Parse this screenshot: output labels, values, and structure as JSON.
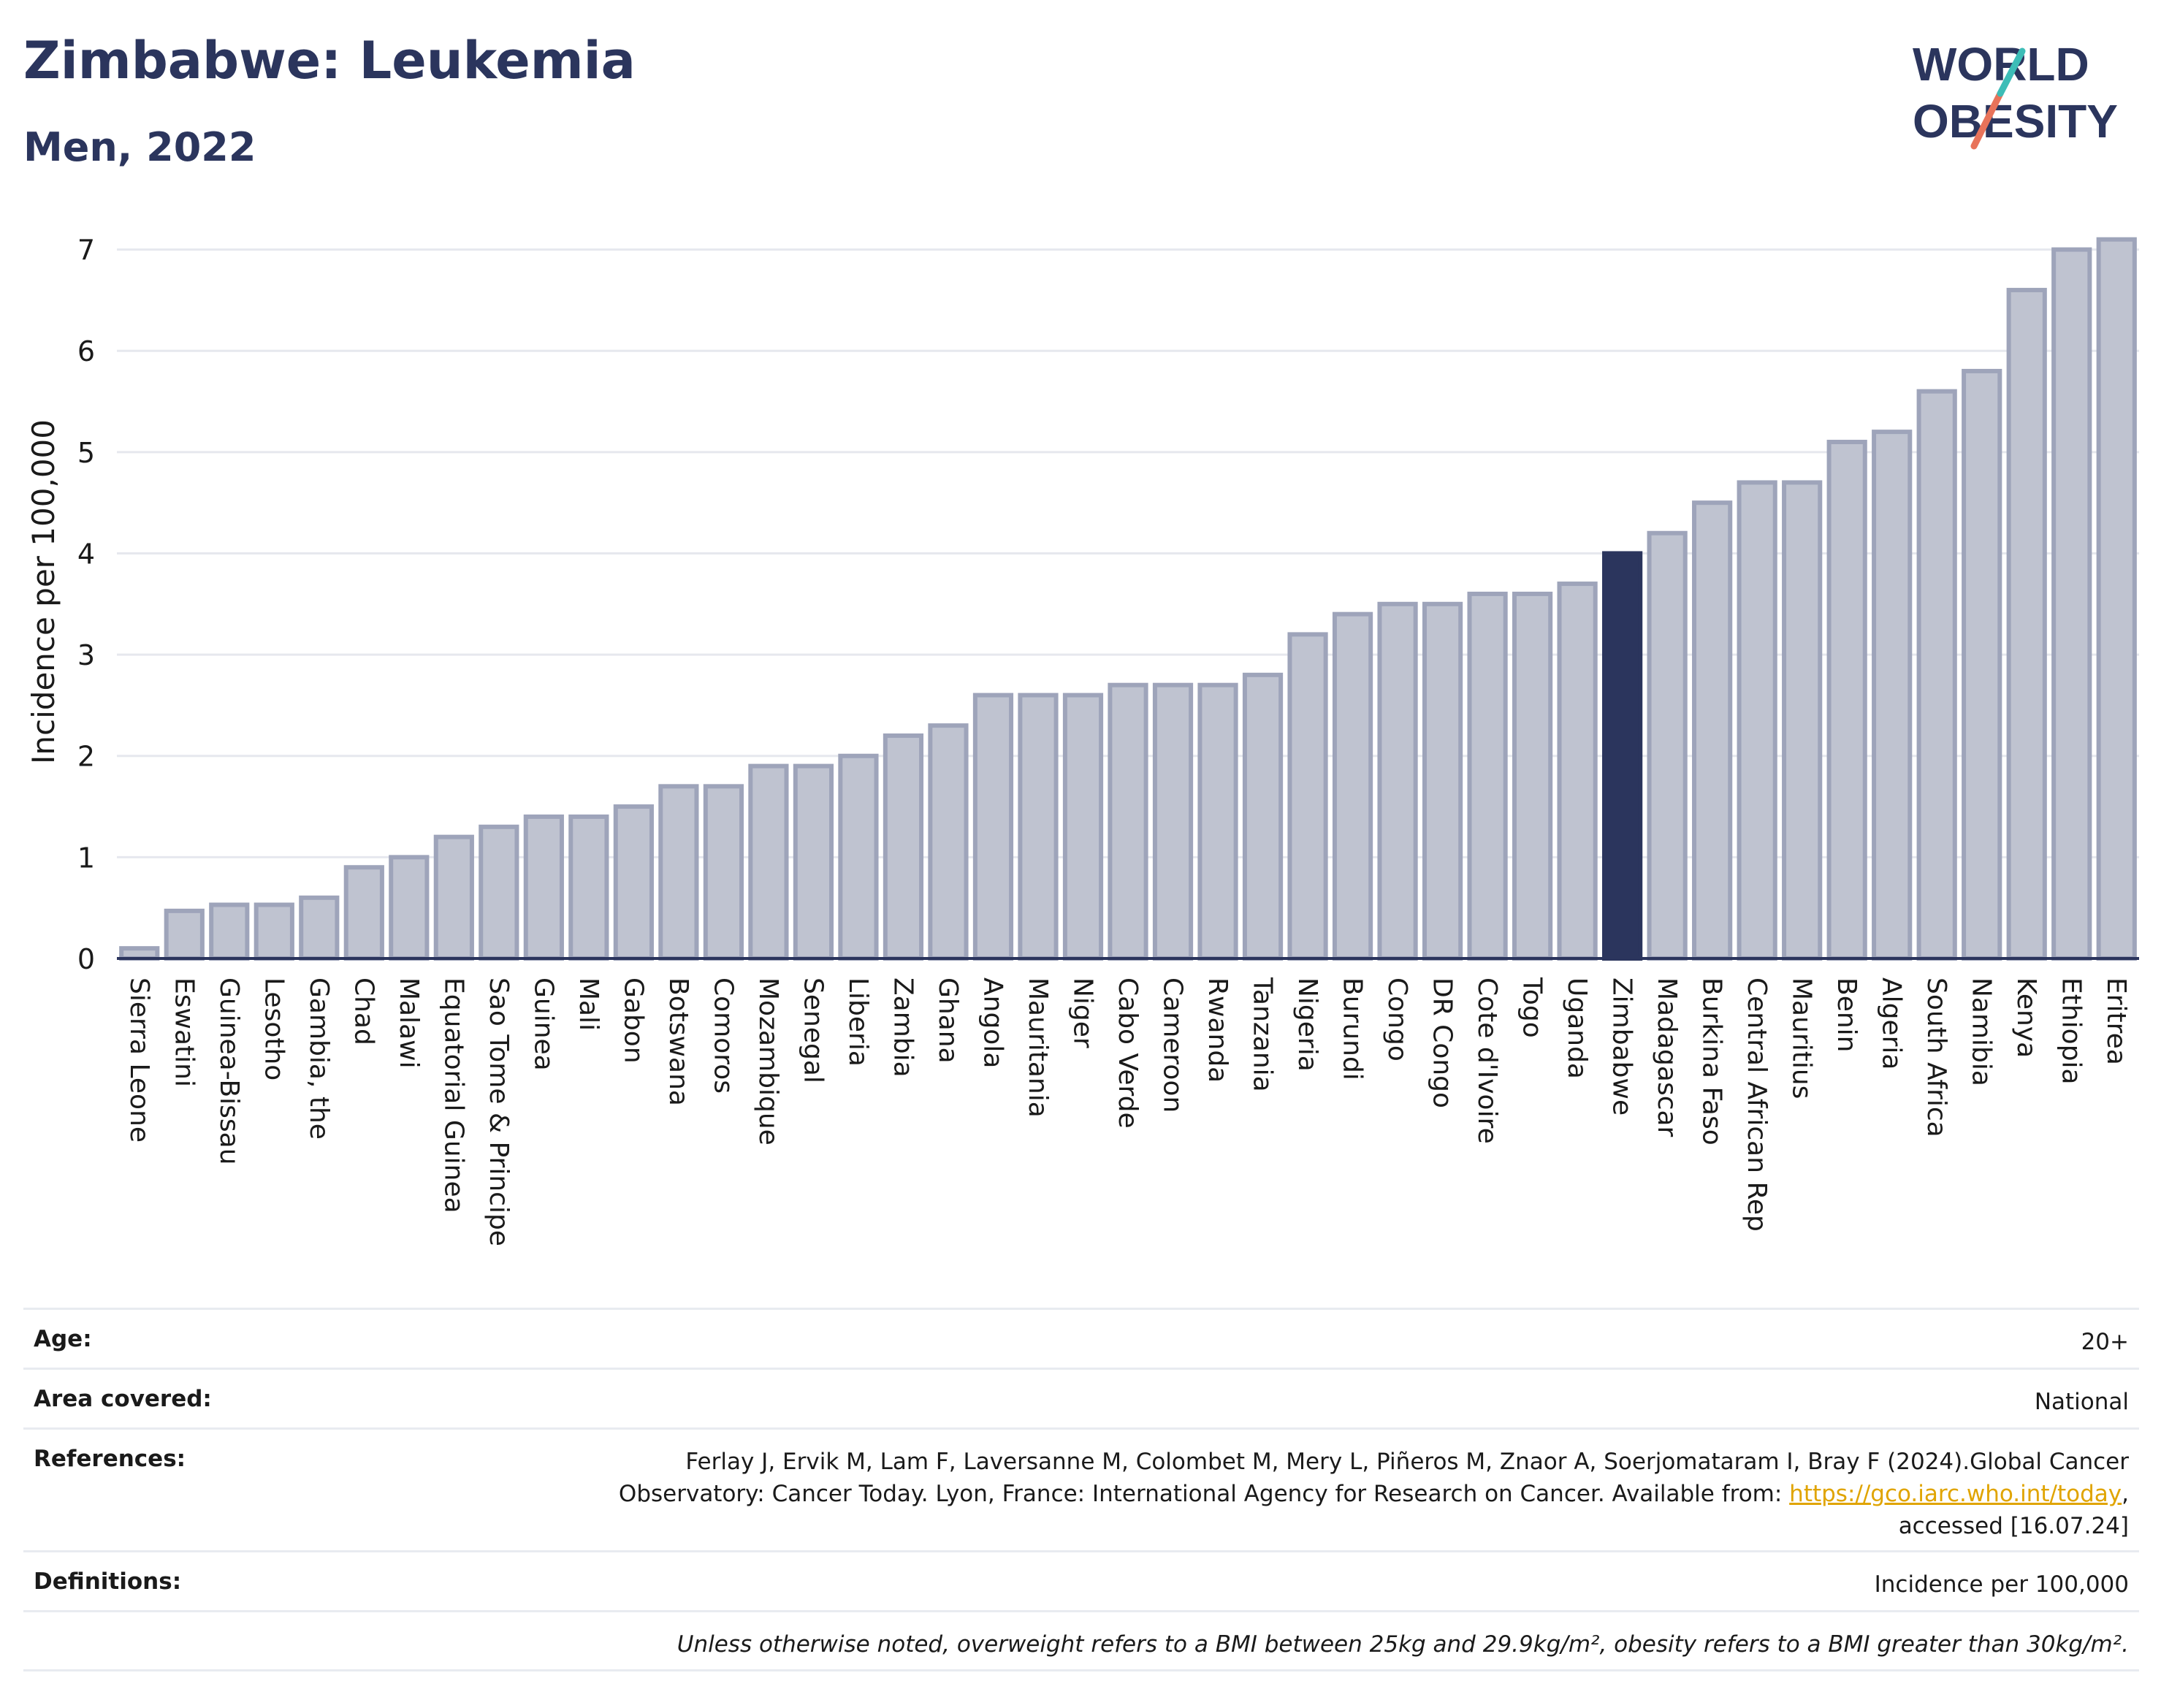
{
  "header": {
    "title": "Zimbabwe: Leukemia",
    "subtitle": "Men, 2022"
  },
  "logo": {
    "line1": "WORLD",
    "line2": "OBESITY",
    "accent_teal": "#3dbdb7",
    "accent_coral": "#e8735a",
    "color": "#2b355d"
  },
  "chart_data": {
    "type": "bar",
    "ylabel": "Incidence per 100,000",
    "ylim": [
      0,
      7.3
    ],
    "yticks": [
      0,
      1,
      2,
      3,
      4,
      5,
      6,
      7
    ],
    "grid": true,
    "highlight": "Zimbabwe",
    "colors": {
      "bar": "#bfc3d0",
      "bar_edge": "#9ea4ba",
      "highlight": "#2b355d",
      "grid": "#e6e8ee",
      "axis": "#2b355d"
    },
    "categories": [
      "Sierra Leone",
      "Eswatini",
      "Guinea-Bissau",
      "Lesotho",
      "Gambia, the",
      "Chad",
      "Malawi",
      "Equatorial Guinea",
      "Sao Tome & Principe",
      "Guinea",
      "Mali",
      "Gabon",
      "Botswana",
      "Comoros",
      "Mozambique",
      "Senegal",
      "Liberia",
      "Zambia",
      "Ghana",
      "Angola",
      "Mauritania",
      "Niger",
      "Cabo Verde",
      "Cameroon",
      "Rwanda",
      "Tanzania",
      "Nigeria",
      "Burundi",
      "Congo",
      "DR Congo",
      "Cote d'Ivoire",
      "Togo",
      "Uganda",
      "Zimbabwe",
      "Madagascar",
      "Burkina Faso",
      "Central African Rep",
      "Mauritius",
      "Benin",
      "Algeria",
      "South Africa",
      "Namibia",
      "Kenya",
      "Ethiopia",
      "Eritrea"
    ],
    "values": [
      0.1,
      0.47,
      0.53,
      0.53,
      0.6,
      0.9,
      1.0,
      1.2,
      1.3,
      1.4,
      1.4,
      1.5,
      1.7,
      1.7,
      1.9,
      1.9,
      2.0,
      2.2,
      2.3,
      2.6,
      2.6,
      2.6,
      2.7,
      2.7,
      2.7,
      2.8,
      3.2,
      3.4,
      3.5,
      3.5,
      3.6,
      3.6,
      3.7,
      4.0,
      4.2,
      4.5,
      4.7,
      4.7,
      5.1,
      5.2,
      5.6,
      5.8,
      6.6,
      7.0,
      7.1
    ]
  },
  "meta": {
    "age_label": "Age:",
    "age_value": "20+",
    "area_label": "Area covered:",
    "area_value": "National",
    "references_label": "References:",
    "references_line1": "Ferlay J, Ervik M, Lam F, Laversanne M, Colombet M, Mery L, Piñeros M, Znaor A, Soerjomataram I, Bray F (2024).Global Cancer",
    "references_line2_pre": "Observatory: Cancer Today. Lyon, France: International Agency for Research on Cancer. Available from: ",
    "references_link": "https://gco.iarc.who.int/today",
    "references_line2_post": ",",
    "references_line3": "accessed [16.07.24]",
    "definitions_label": "Definitions:",
    "definitions_value": "Incidence per 100,000",
    "note": "Unless otherwise noted, overweight refers to a BMI between 25kg and 29.9kg/m², obesity refers to a BMI greater than 30kg/m²."
  }
}
